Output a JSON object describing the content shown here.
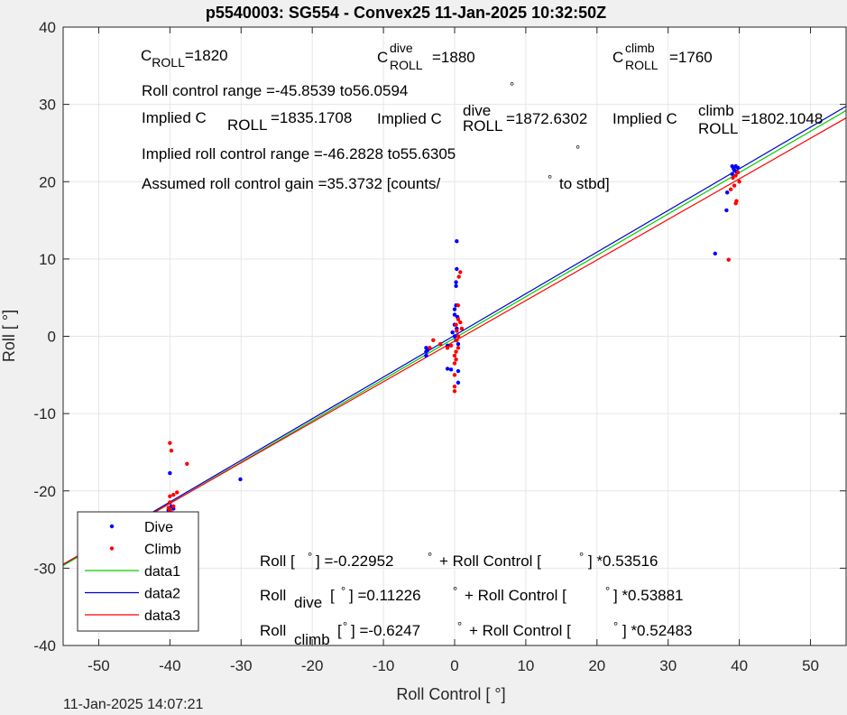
{
  "chart_data": {
    "type": "scatter",
    "title": "p5540003: SG554 - Convex25 11-Jan-2025 10:32:50Z",
    "xlabel": "Roll Control [   °]",
    "ylabel": "Roll [  °]",
    "xlim": [
      -55,
      55
    ],
    "ylim": [
      -40,
      40
    ],
    "xticks": [
      -50,
      -40,
      -30,
      -20,
      -10,
      0,
      10,
      20,
      30,
      40,
      50
    ],
    "yticks": [
      -40,
      -30,
      -20,
      -10,
      0,
      10,
      20,
      30,
      40
    ],
    "grid": true,
    "legend_placement": "bottom-left",
    "legend": [
      {
        "label": "Dive",
        "kind": "marker",
        "color": "#0000ff"
      },
      {
        "label": "Climb",
        "kind": "marker",
        "color": "#ff0000"
      },
      {
        "label": "data1",
        "kind": "line",
        "color": "#00cc00"
      },
      {
        "label": "data2",
        "kind": "line",
        "color": "#0000cc"
      },
      {
        "label": "data3",
        "kind": "line",
        "color": "#ff0000"
      }
    ],
    "series": [
      {
        "name": "Dive",
        "color": "#0000ff",
        "points": [
          [
            -40,
            -17.7
          ],
          [
            -40,
            -21.5
          ],
          [
            -39.8,
            -22
          ],
          [
            -39.5,
            -22.3
          ],
          [
            -40.2,
            -22.5
          ],
          [
            -30.1,
            -18.5
          ],
          [
            -4,
            -1.5
          ],
          [
            -4,
            -2
          ],
          [
            -4,
            -2.5
          ],
          [
            -3.8,
            -1.8
          ],
          [
            -1,
            -1.2
          ],
          [
            -1,
            -4.2
          ],
          [
            -0.5,
            -4.3
          ],
          [
            0.5,
            -4.5
          ],
          [
            0.5,
            -6
          ],
          [
            0.3,
            12.3
          ],
          [
            0.3,
            8.7
          ],
          [
            0.2,
            7
          ],
          [
            0.2,
            6.5
          ],
          [
            0.2,
            4
          ],
          [
            0,
            3.5
          ],
          [
            0,
            2.8
          ],
          [
            0.4,
            2.5
          ],
          [
            0,
            1.5
          ],
          [
            0.3,
            1
          ],
          [
            -0.3,
            0.5
          ],
          [
            0,
            0
          ],
          [
            0.2,
            -0.5
          ],
          [
            0.5,
            -1
          ],
          [
            36.6,
            10.7
          ],
          [
            38.2,
            16.3
          ],
          [
            38.3,
            18.6
          ],
          [
            39,
            21
          ],
          [
            39,
            22
          ],
          [
            39.3,
            21.5
          ],
          [
            39.5,
            22
          ],
          [
            39.8,
            21.8
          ],
          [
            39.2,
            21.7
          ],
          [
            39.6,
            21.3
          ]
        ]
      },
      {
        "name": "Climb",
        "color": "#ff0000",
        "points": [
          [
            -40,
            -13.8
          ],
          [
            -39.8,
            -14.8
          ],
          [
            -37.6,
            -16.5
          ],
          [
            -39,
            -20.2
          ],
          [
            -39.5,
            -20.5
          ],
          [
            -40,
            -20.7
          ],
          [
            -40,
            -21.5
          ],
          [
            -39.5,
            -22
          ],
          [
            -40,
            -22.5
          ],
          [
            -39.8,
            -22.8
          ],
          [
            -40.2,
            -22.2
          ],
          [
            -3,
            -0.5
          ],
          [
            -3.5,
            -1.5
          ],
          [
            -2,
            -1
          ],
          [
            -1,
            -1.5
          ],
          [
            -0.5,
            -1.2
          ],
          [
            0.8,
            8.3
          ],
          [
            0.6,
            7.7
          ],
          [
            0.5,
            4
          ],
          [
            0.5,
            2.2
          ],
          [
            0.8,
            1.8
          ],
          [
            0.2,
            1.5
          ],
          [
            1,
            1
          ],
          [
            0.3,
            0.7
          ],
          [
            0.5,
            0
          ],
          [
            0.3,
            -0.5
          ],
          [
            0.5,
            -1.5
          ],
          [
            0.2,
            -2
          ],
          [
            0,
            -2.5
          ],
          [
            0.2,
            -3
          ],
          [
            0,
            -3.5
          ],
          [
            0,
            -5
          ],
          [
            0,
            -6.5
          ],
          [
            0,
            -7.1
          ],
          [
            38.5,
            9.9
          ],
          [
            39.5,
            17.2
          ],
          [
            39.6,
            17.5
          ],
          [
            38.8,
            19
          ],
          [
            39.3,
            19.5
          ],
          [
            40,
            20
          ],
          [
            39.5,
            20.8
          ],
          [
            39.8,
            21.2
          ],
          [
            39.1,
            20.5
          ]
        ]
      }
    ],
    "lines": [
      {
        "name": "data1",
        "color": "#00cc00",
        "slope": 0.53516,
        "intercept": -0.22952
      },
      {
        "name": "data2",
        "color": "#0000cc",
        "slope": 0.53881,
        "intercept": 0.11226
      },
      {
        "name": "data3",
        "color": "#ff0000",
        "slope": 0.52483,
        "intercept": -0.6247
      }
    ],
    "annotations": {
      "c_roll": {
        "base": "C",
        "sub": "ROLL",
        "value": "=1820"
      },
      "c_roll_dive": {
        "base": "C",
        "sup": "dive",
        "sub": "ROLL",
        "value": "=1880"
      },
      "c_roll_climb": {
        "base": "C",
        "sup": "climb",
        "sub": "ROLL",
        "value": "=1760"
      },
      "roll_control_range": "Roll control range =-45.8539 to56.0594",
      "implied_c": [
        {
          "prefix": "Implied C",
          "sub": "ROLL",
          "value": "=1835.1708"
        },
        {
          "prefix": "Implied C",
          "sup": "dive",
          "sub": "ROLL",
          "value": "=1872.6302"
        },
        {
          "prefix": "Implied C",
          "sup": "climb",
          "sub": "ROLL",
          "value": "=1802.1048"
        }
      ],
      "implied_range": "Implied roll control range =-46.2828 to55.6305",
      "gain_pre": "Assumed roll control gain =35.3732 [counts/",
      "gain_post": "to stbd]",
      "degree": "°",
      "fit_all": {
        "a": "Roll [  ",
        "b": "] =-0.22952",
        "c": "+ Roll Control [   ",
        "d": "] *0.53516"
      },
      "fit_dive": {
        "a": "Roll",
        "sub": "dive",
        "b": "[  ",
        "c": "] =0.11226",
        "d": "+ Roll Control [   ",
        "e": "] *0.53881"
      },
      "fit_climb": {
        "a": "Roll",
        "sub": "climb",
        "b": "[  ",
        "c": "] =-0.6247",
        "d": "+ Roll Control [   ",
        "e": "] *0.52483"
      }
    }
  },
  "footer_timestamp": "11-Jan-2025 14:07:21"
}
